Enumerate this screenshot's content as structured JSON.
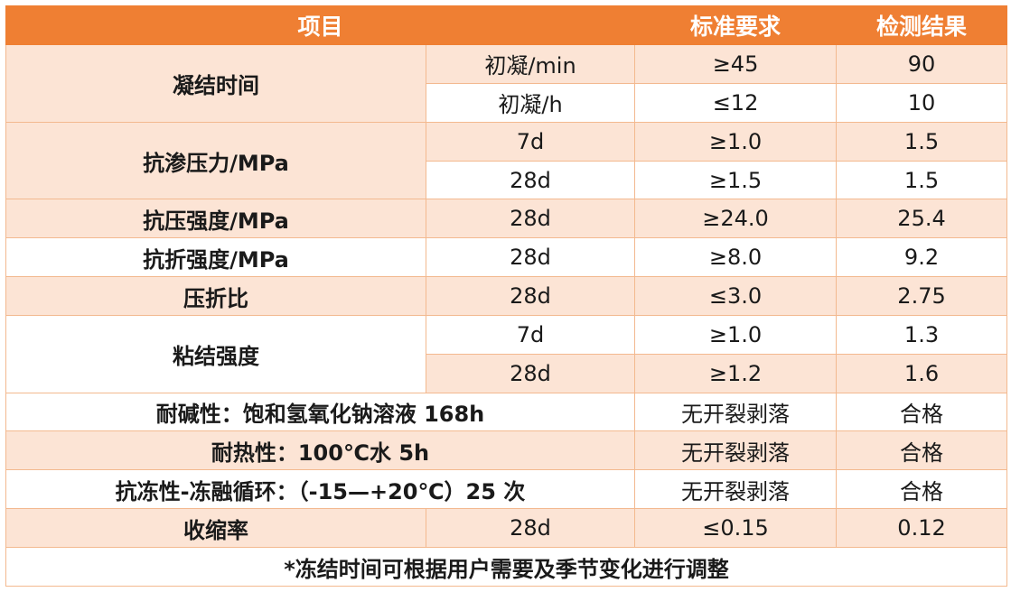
{
  "table": {
    "headers": [
      "项目",
      "标准要求",
      "检测结果"
    ],
    "setting_time": {
      "label": "凝结时间",
      "rows": [
        {
          "sub": "初凝/min",
          "std": "≥45",
          "result": "90"
        },
        {
          "sub": "初凝/h",
          "std": "≤12",
          "result": "10"
        }
      ]
    },
    "impermeability": {
      "label": "抗渗压力/MPa",
      "rows": [
        {
          "sub": "7d",
          "std": "≥1.0",
          "result": "1.5"
        },
        {
          "sub": "28d",
          "std": "≥1.5",
          "result": "1.5"
        }
      ]
    },
    "compressive": {
      "label": "抗压强度/MPa",
      "sub": "28d",
      "std": "≥24.0",
      "result": "25.4"
    },
    "flexural": {
      "label": "抗折强度/MPa",
      "sub": "28d",
      "std": "≥8.0",
      "result": "9.2"
    },
    "ratio": {
      "label": "压折比",
      "sub": "28d",
      "std": "≤3.0",
      "result": "2.75"
    },
    "bond": {
      "label": "粘结强度",
      "rows": [
        {
          "sub": "7d",
          "std": "≥1.0",
          "result": "1.3"
        },
        {
          "sub": "28d",
          "std": "≥1.2",
          "result": "1.6"
        }
      ]
    },
    "alkali": {
      "label": "耐碱性：饱和氢氧化钠溶液 168h",
      "std": "无开裂剥落",
      "result": "合格"
    },
    "heat": {
      "label": "耐热性：100℃水 5h",
      "std": "无开裂剥落",
      "result": "合格"
    },
    "freeze": {
      "label": "抗冻性-冻融循环：（-15—+20℃）25 次",
      "std": "无开裂剥落",
      "result": "合格"
    },
    "shrinkage": {
      "label": "收缩率",
      "sub": "28d",
      "std": "≤0.15",
      "result": "0.12"
    },
    "footnote": "*冻结时间可根据用户需要及季节变化进行调整"
  },
  "colors": {
    "header_bg": "#ef7f33",
    "peach_row": "#fce4d5",
    "border": "#f3b98f"
  }
}
